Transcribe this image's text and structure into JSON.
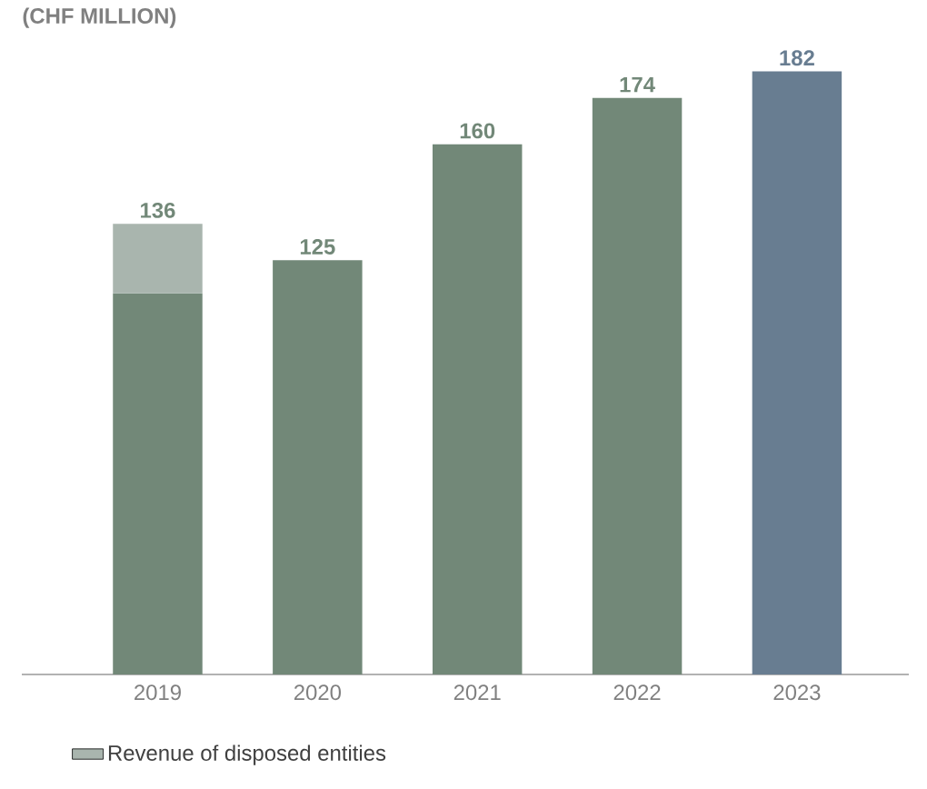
{
  "chart_data": {
    "type": "bar",
    "title": "(CHF MILLION)",
    "stacked": true,
    "categories": [
      "2019",
      "2020",
      "2021",
      "2022",
      "2023"
    ],
    "series": [
      {
        "colors": [
          "#728878",
          "#728878",
          "#728878",
          "#728878",
          "#687d91"
        ],
        "values": [
          115,
          125,
          160,
          174,
          182
        ],
        "value_labels": [
          null,
          "125",
          "160",
          "174",
          "182"
        ]
      },
      {
        "name": "Revenue of disposed entities",
        "color": "#a9b5ae",
        "values": [
          21,
          0,
          0,
          0,
          0
        ]
      }
    ],
    "totals": [
      "136",
      null,
      null,
      null,
      null
    ],
    "legend": "bottom"
  }
}
